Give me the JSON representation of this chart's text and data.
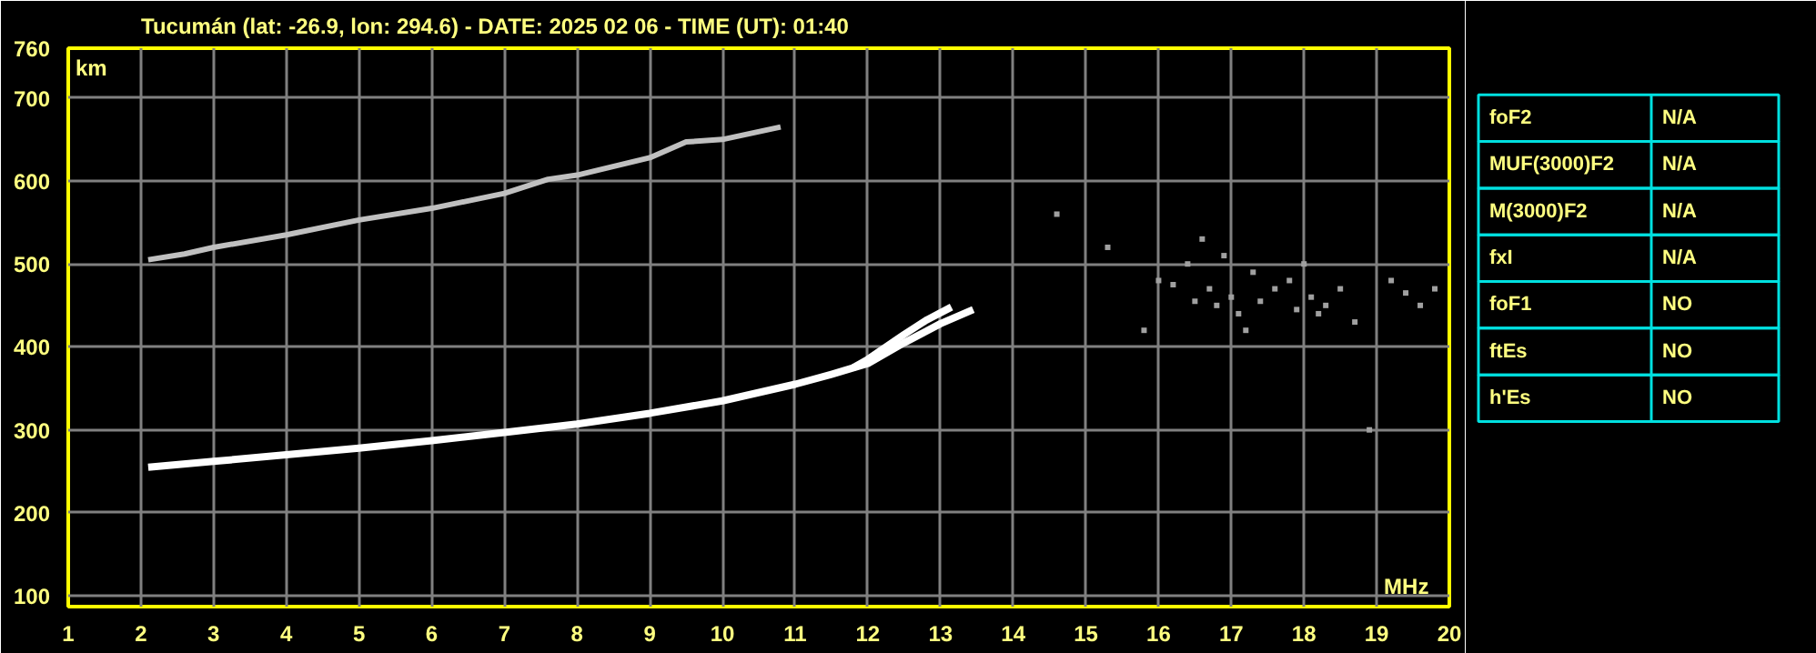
{
  "chart_data": [
    {
      "type": "line",
      "title": "Tucumán (lat: -26.9, lon: 294.6) - DATE: 2025 02 06 - TIME (UT): 01:40",
      "xlabel": "MHz",
      "ylabel": "km",
      "xlim": [
        1,
        20
      ],
      "ylim": [
        87,
        760
      ],
      "xticks": [
        1,
        2,
        3,
        4,
        5,
        6,
        7,
        8,
        9,
        10,
        11,
        12,
        13,
        14,
        15,
        16,
        17,
        18,
        19,
        20
      ],
      "yticks": [
        100,
        200,
        300,
        400,
        500,
        600,
        700,
        760
      ],
      "grid": true,
      "marker": "none",
      "series": [
        {
          "color": "#ffffff",
          "x": [
            2.1,
            3,
            4,
            5,
            6,
            7,
            8,
            9,
            10,
            11,
            11.5,
            12,
            12.5,
            13,
            13.45
          ],
          "values": [
            255,
            262,
            270,
            278,
            287,
            297,
            307,
            320,
            335,
            355,
            367,
            380,
            405,
            428,
            445
          ]
        },
        {
          "color": "#ffffff",
          "x": [
            11.8,
            12,
            12.5,
            12.8,
            13.15
          ],
          "values": [
            375,
            385,
            415,
            432,
            448
          ]
        },
        {
          "color": "#c0c0c0",
          "x": [
            2.1,
            2.6,
            3,
            4,
            5,
            6,
            7,
            7.6,
            8,
            9,
            9.5,
            10,
            10.8
          ],
          "values": [
            505,
            512,
            520,
            535,
            553,
            567,
            585,
            602,
            607,
            628,
            647,
            650,
            665
          ]
        },
        {
          "type": "scatter",
          "marker": "square",
          "color": "#a0a0a0",
          "x": [
            16.0,
            16.2,
            16.4,
            16.5,
            16.7,
            16.8,
            16.9,
            17.0,
            17.1,
            17.3,
            17.4,
            17.6,
            17.8,
            17.9,
            18.0,
            18.1,
            18.3,
            18.5,
            18.7,
            19.2,
            19.4,
            19.6,
            19.8,
            15.3,
            14.6,
            15.8,
            16.6,
            17.2,
            18.2,
            18.9
          ],
          "values": [
            480,
            475,
            500,
            455,
            470,
            450,
            510,
            460,
            440,
            490,
            455,
            470,
            480,
            445,
            500,
            460,
            450,
            470,
            430,
            480,
            465,
            450,
            470,
            520,
            560,
            420,
            530,
            420,
            440,
            300
          ]
        }
      ]
    },
    {
      "type": "other",
      "annotations": [
        "foF2",
        "N/A",
        "MUF(3000)F2",
        "N/A",
        "M(3000)F2",
        "N/A",
        "fxI",
        "N/A",
        "foF1",
        "NO",
        "ftEs",
        "NO",
        "h'Es",
        "NO"
      ]
    }
  ]
}
